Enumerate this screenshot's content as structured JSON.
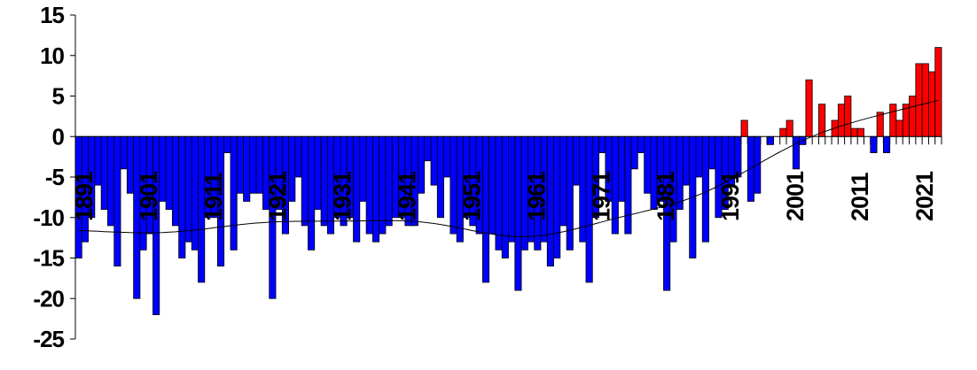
{
  "chart_data": {
    "type": "bar",
    "title": "",
    "xlabel": "",
    "ylabel": "",
    "ylim": [
      -25,
      15
    ],
    "yticks": [
      "15",
      "10",
      "5",
      "0",
      "-5",
      "-10",
      "-15",
      "-20",
      "-25"
    ],
    "ytick_values": [
      15,
      10,
      5,
      0,
      -5,
      -10,
      -15,
      -20,
      -25
    ],
    "xtick_labels": [
      "1891",
      "1901",
      "1911",
      "1921",
      "1931",
      "1941",
      "1951",
      "1961",
      "1971",
      "1981",
      "1991",
      "2001",
      "2011",
      "2021"
    ],
    "grid": false,
    "legend": "none",
    "colors": {
      "negative": "#0000FF",
      "positive": "#FF0000",
      "outline": "#000000",
      "trend": "#000000"
    },
    "trend_line": "smoothed curve",
    "first_year": 1891,
    "values": [
      -15,
      -13,
      -10,
      -6,
      -9,
      -11,
      -16,
      -4,
      -7,
      -20,
      -14,
      -12,
      -22,
      -8,
      -9,
      -11,
      -15,
      -13,
      -14,
      -18,
      -10,
      -10,
      -16,
      -2,
      -14,
      -7,
      -8,
      -7,
      -7,
      -9,
      -20,
      -9,
      -12,
      -8,
      -5,
      -11,
      -14,
      -9,
      -11,
      -12,
      -10,
      -11,
      -10,
      -13,
      -8,
      -12,
      -13,
      -12,
      -11,
      -10,
      -10,
      -11,
      -11,
      -7,
      -3,
      -6,
      -10,
      -5,
      -12,
      -13,
      -10,
      -11,
      -12,
      -18,
      -12,
      -14,
      -15,
      -13,
      -19,
      -14,
      -13,
      -14,
      -13,
      -16,
      -15,
      -11,
      -14,
      -6,
      -13,
      -18,
      -10,
      -2,
      -8,
      -12,
      -8,
      -12,
      -4,
      -2,
      -7,
      -9,
      -8,
      -19,
      -13,
      -9,
      -6,
      -15,
      -5,
      -13,
      -4,
      -10,
      -9,
      -6,
      -5,
      2,
      -8,
      -7,
      0,
      -1,
      0,
      1,
      2,
      -4,
      -1,
      7,
      0,
      4,
      0,
      2,
      4,
      5,
      1,
      1,
      0,
      -2,
      3,
      -2,
      4,
      2,
      4,
      5,
      9,
      9,
      8,
      11
    ]
  }
}
